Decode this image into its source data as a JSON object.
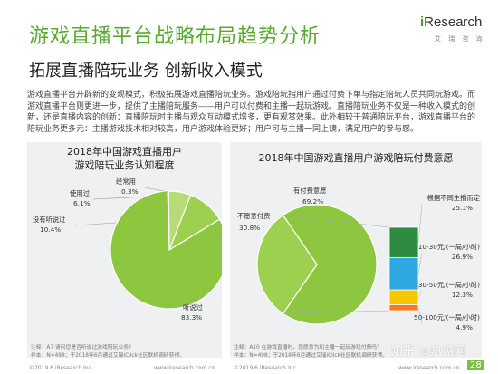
{
  "header": {
    "title": "游戏直播平台战略布局趋势分析",
    "subtitle": "拓展直播陪玩业务 创新收入模式"
  },
  "logo": {
    "i": "i",
    "text": "Research",
    "sub": "艾 瑞 咨 询"
  },
  "body_text": "游戏直播平台开辟新的变现模式，积极拓展游戏直播陪玩业务。游戏陪玩指用户通过付费下单与指定陪玩人员共同玩游戏。而游戏直播平台则更进一步，提供了主播陪玩服务——用户可以付费和主播一起玩游戏。直播陪玩业务不仅是一种收入模式的创新，还是直播内容的创新：直播陪玩时主播与观众互动模式增多，更有观赏效果。此外相较于普通陪玩平台，游戏直播平台的陪玩业务更多元：主播游戏技术相对较高，用户游戏体验更好；用户可与主播一同上镜，满足用户的参与感。",
  "colors": {
    "green": "#8dc63f",
    "green_title": "#5aa832",
    "panel_bg": "#eef0f2",
    "orange": "#f47b20",
    "yellow": "#f7c600",
    "blue": "#2ea8e0",
    "pink": "#f4a3a3"
  },
  "chart_data": [
    {
      "type": "pie",
      "title": "2018年中国游戏直播用户\n游戏陪玩业务认知程度",
      "slices": [
        {
          "label": "听说过",
          "value": 83.3,
          "display": "83.3%",
          "color": "#8dc63f"
        },
        {
          "label": "没有听说过",
          "value": 10.4,
          "display": "10.4%",
          "color": "#9ed04f"
        },
        {
          "label": "使用过",
          "value": 6.1,
          "display": "6.1%",
          "color": "#b5dc78"
        },
        {
          "label": "经常用",
          "value": 0.3,
          "display": "0.3%",
          "color": "#cce7a4"
        }
      ],
      "note": "注释：A7 请问您是否听说过游戏陪玩业务?\n样本：N=498；于2018年6月通过艾瑞iClick社区联机调研获得。"
    },
    {
      "type": "pie",
      "title": "2018年中国游戏直播用户游戏陪玩付费意愿",
      "slices": [
        {
          "label": "有付费意愿",
          "value": 69.2,
          "display": "69.2%",
          "color": "#8dc63f"
        },
        {
          "label": "不愿意付费",
          "value": 30.8,
          "display": "30.8%",
          "color": "#9ed04f"
        }
      ],
      "breakdown": {
        "of": "有付费意愿",
        "segments": [
          {
            "label": "根据不同主播而定",
            "value": 25.1,
            "display": "25.1%",
            "color": "#2e8b3f"
          },
          {
            "label": "10-30元/(一局/小时)",
            "value": 26.9,
            "display": "26.9%",
            "color": "#2ea8e0"
          },
          {
            "label": "30-50元/(一局/小时)",
            "value": 12.3,
            "display": "12.3%",
            "color": "#f7c600"
          },
          {
            "label": "50-100元/(一局/小时)",
            "value": 4.9,
            "display": "4.9%",
            "color": "#f47b20"
          }
        ]
      },
      "note": "注释：A10 在游戏直播时，您愿意为和主播一起玩游戏付费吗?\n样本：N=498；于2018年6月通过艾瑞iClick社区联机调研获得。"
    }
  ],
  "footer": {
    "left_copyright": "©2019.6 iResearch Inc.",
    "left_url": "www.iresearch.com.cn",
    "right_copyright": "©2019.6 iResearch Inc.",
    "right_url": "www.iresearch.com.cn"
  },
  "watermark": "知乎 @热见网",
  "page_number": "28"
}
